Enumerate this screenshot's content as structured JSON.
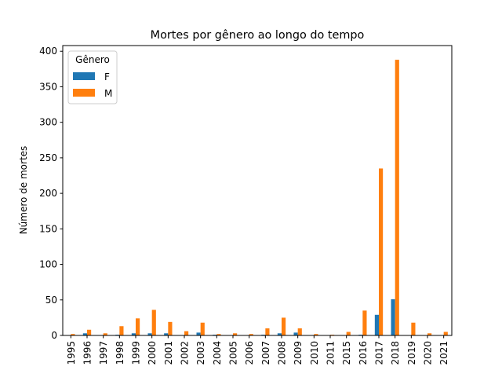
{
  "chart_data": {
    "type": "bar",
    "title": "Mortes por gênero ao longo do tempo",
    "xlabel": "",
    "ylabel": "Número de mortes",
    "categories": [
      "1995",
      "1996",
      "1997",
      "1998",
      "1999",
      "2000",
      "2001",
      "2002",
      "2003",
      "2004",
      "2005",
      "2006",
      "2007",
      "2008",
      "2009",
      "2010",
      "2011",
      "2015",
      "2016",
      "2017",
      "2018",
      "2019",
      "2020",
      "2021"
    ],
    "series": [
      {
        "name": "F",
        "color": "#1f77b4",
        "values": [
          0,
          3,
          0,
          1,
          3,
          3,
          3,
          0,
          4,
          1,
          0,
          0,
          1,
          3,
          4,
          0,
          0,
          0,
          1,
          29,
          51,
          0,
          0,
          0
        ]
      },
      {
        "name": "M",
        "color": "#ff7f0e",
        "values": [
          2,
          8,
          3,
          13,
          24,
          36,
          19,
          6,
          18,
          2,
          3,
          2,
          10,
          25,
          10,
          2,
          1,
          5,
          35,
          235,
          388,
          18,
          3,
          5
        ]
      }
    ],
    "ylim": [
      0,
      408
    ],
    "yticks": [
      0,
      50,
      100,
      150,
      200,
      250,
      300,
      350,
      400
    ],
    "legend": {
      "title": "Gênero",
      "placement": "top-left"
    },
    "grid": false
  }
}
